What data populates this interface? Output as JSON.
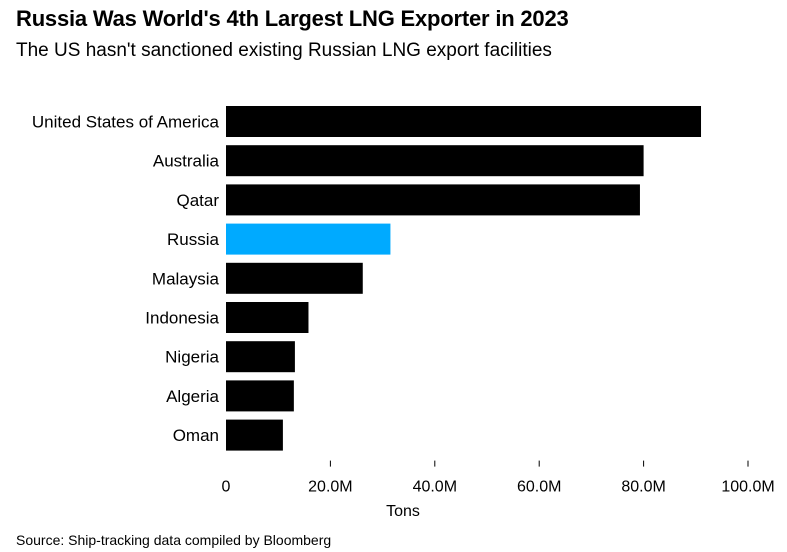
{
  "header": {
    "title": "Russia Was World's 4th Largest LNG Exporter in 2023",
    "subtitle": "The US hasn't sanctioned existing Russian LNG export facilities"
  },
  "footer": {
    "source": "Source: Ship-tracking data compiled by Bloomberg"
  },
  "colors": {
    "bar": "#000000",
    "highlight": "#00aaff"
  },
  "chart_data": {
    "type": "bar",
    "orientation": "horizontal",
    "categories": [
      "United States of America",
      "Australia",
      "Qatar",
      "Russia",
      "Malaysia",
      "Indonesia",
      "Nigeria",
      "Algeria",
      "Oman"
    ],
    "values": [
      91000000,
      80000000,
      79300000,
      31500000,
      26200000,
      15800000,
      13200000,
      13000000,
      10900000
    ],
    "highlight": "Russia",
    "xlabel": "Tons",
    "ylabel": "",
    "xlim": [
      0,
      100000000
    ],
    "xticks": [
      0,
      20000000,
      40000000,
      60000000,
      80000000,
      100000000
    ],
    "xtick_labels": [
      "0",
      "20.0M",
      "40.0M",
      "60.0M",
      "80.0M",
      "100.0M"
    ]
  }
}
